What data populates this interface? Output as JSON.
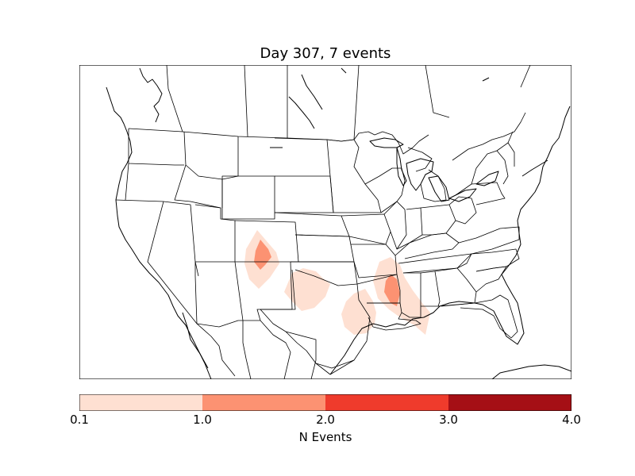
{
  "title": "Day 307, 7 events",
  "colorbar": {
    "label": "N Events",
    "ticks": [
      "0.1",
      "1.0",
      "2.0",
      "3.0",
      "4.0"
    ],
    "colors": [
      "#fee0d2",
      "#fc9272",
      "#ef3b2c",
      "#a50f15"
    ]
  },
  "map_style": {
    "land": "#ffffff",
    "line": "#000000",
    "low": "#fee0d2",
    "mid": "#fc9272"
  }
}
